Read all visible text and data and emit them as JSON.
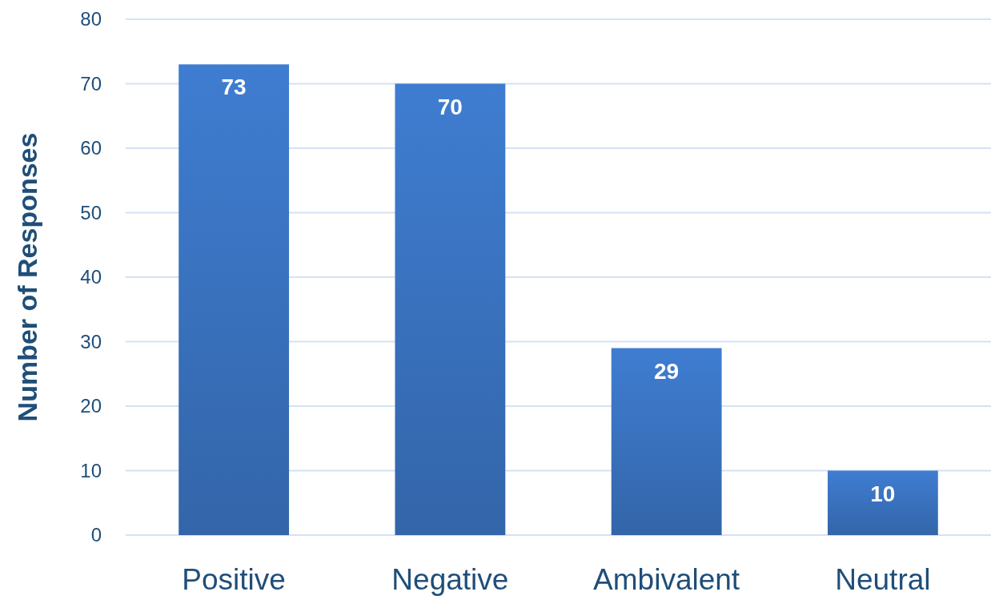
{
  "chart_data": {
    "type": "bar",
    "ylabel": "Number of Responses",
    "categories": [
      "Positive",
      "Negative",
      "Ambivalent",
      "Neutral"
    ],
    "values": [
      73,
      70,
      29,
      10
    ],
    "color": "#3a72bf",
    "ylim": [
      0,
      80
    ],
    "yticks": [
      0,
      10,
      20,
      30,
      40,
      50,
      60,
      70,
      80
    ],
    "grid": "y",
    "data_labels": true
  }
}
